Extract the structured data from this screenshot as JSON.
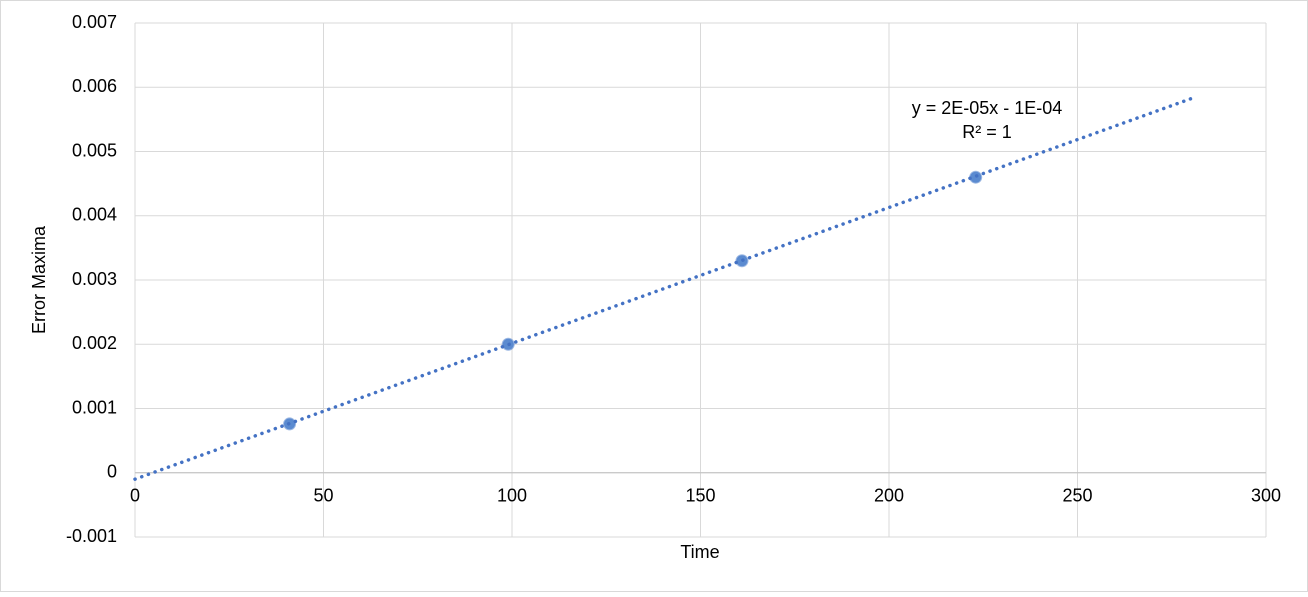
{
  "chart_data": {
    "type": "scatter",
    "x_label": "Time",
    "y_label": "Error Maxima",
    "xlim": [
      0,
      300
    ],
    "xticks": [
      0,
      50,
      100,
      150,
      200,
      250,
      300
    ],
    "ylim": [
      -0.001,
      0.007
    ],
    "yticks": [
      -0.001,
      0,
      0.001,
      0.002,
      0.003,
      0.004,
      0.005,
      0.006,
      0.007
    ],
    "grid": true,
    "series": [
      {
        "color": "#5b8bd0",
        "x": [
          41,
          99,
          161,
          223
        ],
        "values": [
          0.00076,
          0.002,
          0.0033,
          0.0046
        ]
      }
    ],
    "trendline": {
      "color": "#4472c4",
      "style": "dotted",
      "x": [
        0,
        280
      ],
      "values": [
        -0.0001,
        0.00582
      ]
    },
    "annotations": [
      "y = 2E-05x - 1E-04",
      "R² = 1"
    ]
  }
}
